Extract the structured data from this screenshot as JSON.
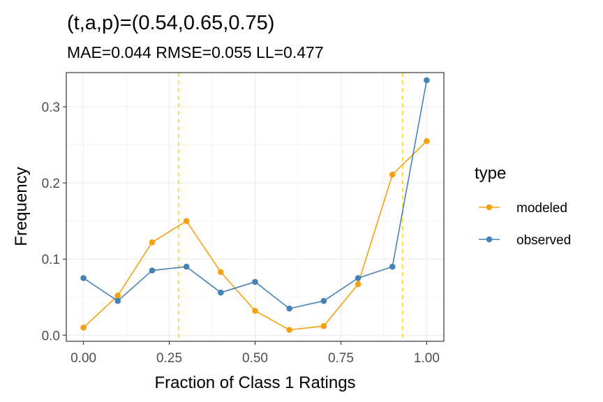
{
  "chart_data": {
    "type": "line",
    "title": "(t,a,p)=(0.54,0.65,0.75)",
    "subtitle": "MAE=0.044  RMSE=0.055  LL=0.477",
    "xlabel": "Fraction of Class 1 Ratings",
    "ylabel": "Frequency",
    "xlim": [
      -0.05,
      1.05
    ],
    "ylim": [
      -0.008,
      0.345
    ],
    "x_ticks": [
      0.0,
      0.25,
      0.5,
      0.75,
      1.0
    ],
    "x_tick_labels": [
      "0.00",
      "0.25",
      "0.50",
      "0.75",
      "1.00"
    ],
    "y_ticks": [
      0.0,
      0.1,
      0.2,
      0.3
    ],
    "y_tick_labels": [
      "0.0",
      "0.1",
      "0.2",
      "0.3"
    ],
    "grid": true,
    "legend": {
      "title": "type",
      "position": "right"
    },
    "x": [
      0.0,
      0.1,
      0.2,
      0.3,
      0.4,
      0.5,
      0.6,
      0.7,
      0.8,
      0.9,
      1.0
    ],
    "series": [
      {
        "name": "modeled",
        "color": "#f5a00f",
        "values": [
          0.01,
          0.052,
          0.122,
          0.15,
          0.083,
          0.032,
          0.007,
          0.012,
          0.067,
          0.211,
          0.255
        ]
      },
      {
        "name": "observed",
        "color": "#4682b4",
        "values": [
          0.075,
          0.045,
          0.085,
          0.09,
          0.056,
          0.07,
          0.035,
          0.045,
          0.075,
          0.09,
          0.335
        ]
      }
    ],
    "vlines": {
      "color": "#ffd700",
      "style": "dashed",
      "x": [
        0.277,
        0.93
      ]
    }
  }
}
